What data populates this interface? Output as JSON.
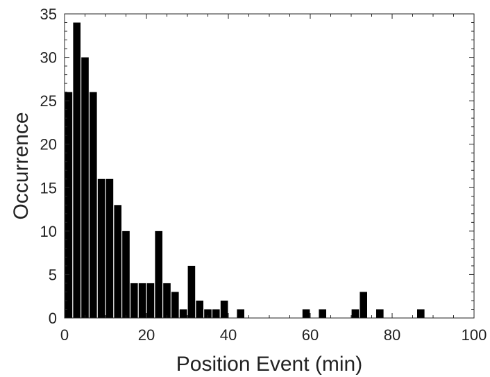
{
  "chart_data": {
    "type": "bar",
    "title": "",
    "xlabel": "Position Event (min)",
    "ylabel": "Occurrence",
    "xlim": [
      0,
      100
    ],
    "ylim": [
      0,
      35
    ],
    "bin_width": 2,
    "xticks": [
      0,
      20,
      40,
      60,
      80,
      100
    ],
    "yticks": [
      0,
      5,
      10,
      15,
      20,
      25,
      30,
      35
    ],
    "bar_color": "#000000",
    "grid": false,
    "bins": [
      {
        "x": 1,
        "value": 26
      },
      {
        "x": 3,
        "value": 34
      },
      {
        "x": 5,
        "value": 30
      },
      {
        "x": 7,
        "value": 26
      },
      {
        "x": 9,
        "value": 16
      },
      {
        "x": 11,
        "value": 16
      },
      {
        "x": 13,
        "value": 13
      },
      {
        "x": 15,
        "value": 10
      },
      {
        "x": 17,
        "value": 4
      },
      {
        "x": 19,
        "value": 4
      },
      {
        "x": 21,
        "value": 4
      },
      {
        "x": 23,
        "value": 10
      },
      {
        "x": 25,
        "value": 4
      },
      {
        "x": 27,
        "value": 3
      },
      {
        "x": 29,
        "value": 1
      },
      {
        "x": 31,
        "value": 6
      },
      {
        "x": 33,
        "value": 2
      },
      {
        "x": 35,
        "value": 1
      },
      {
        "x": 37,
        "value": 1
      },
      {
        "x": 39,
        "value": 2
      },
      {
        "x": 43,
        "value": 1
      },
      {
        "x": 59,
        "value": 1
      },
      {
        "x": 63,
        "value": 1
      },
      {
        "x": 71,
        "value": 1
      },
      {
        "x": 73,
        "value": 3
      },
      {
        "x": 77,
        "value": 1
      },
      {
        "x": 87,
        "value": 1
      }
    ]
  }
}
